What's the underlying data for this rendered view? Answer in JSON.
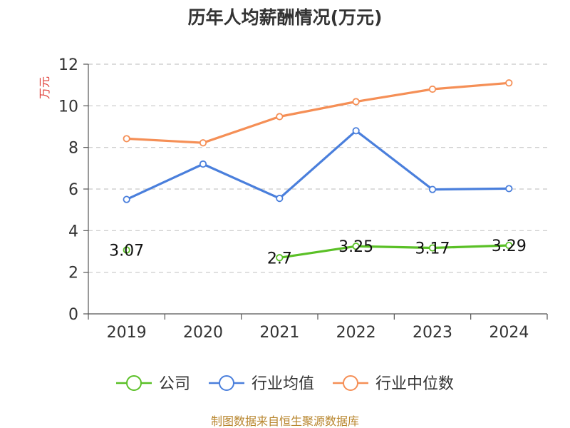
{
  "chart_data": {
    "type": "line",
    "title": "历年人均薪酬情况(万元)",
    "ylabel": "万元",
    "xlabel": "",
    "categories": [
      "2019",
      "2020",
      "2021",
      "2022",
      "2023",
      "2024"
    ],
    "ylim": [
      0,
      12
    ],
    "yticks": [
      "0",
      "2",
      "4",
      "6",
      "8",
      "10",
      "12"
    ],
    "grid": true,
    "legend_position": "bottom",
    "series": [
      {
        "name": "公司",
        "color": "#5ac026",
        "values": [
          3.07,
          null,
          2.7,
          3.25,
          3.17,
          3.29
        ],
        "labels": [
          "3.07",
          "",
          "2.7",
          "3.25",
          "3.17",
          "3.29"
        ]
      },
      {
        "name": "行业均值",
        "color": "#4a7fdc",
        "values": [
          5.5,
          7.2,
          5.55,
          8.8,
          5.98,
          6.02
        ],
        "labels": [
          "",
          "",
          "",
          "",
          "",
          ""
        ]
      },
      {
        "name": "行业中位数",
        "color": "#f58f56",
        "values": [
          8.42,
          8.22,
          9.48,
          10.2,
          10.8,
          11.1
        ],
        "labels": [
          "",
          "",
          "",
          "",
          "",
          ""
        ]
      }
    ],
    "source": "制图数据来自恒生聚源数据库"
  }
}
